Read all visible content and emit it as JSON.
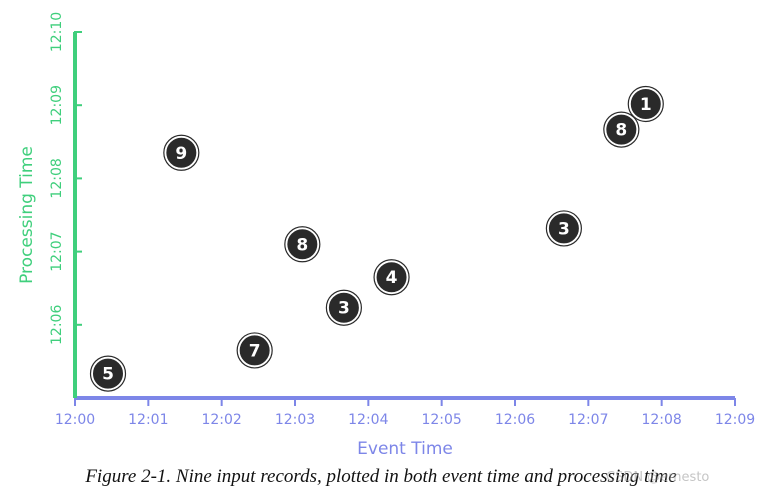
{
  "chart_data": {
    "type": "scatter",
    "xlabel": "Event Time",
    "ylabel": "Processing Time",
    "x_ticks": [
      "12:00",
      "12:01",
      "12:02",
      "12:03",
      "12:04",
      "12:05",
      "12:06",
      "12:07",
      "12:08",
      "12:09"
    ],
    "y_ticks": [
      "12:10",
      "12:09",
      "12:08",
      "12:07",
      "12:06"
    ],
    "x_range": [
      "12:00",
      "12:09"
    ],
    "y_range": [
      "12:05:00",
      "12:10:00"
    ],
    "grid": false,
    "points": [
      {
        "label": "5",
        "x": "12:00:27",
        "y": "12:05:20"
      },
      {
        "label": "9",
        "x": "12:01:27",
        "y": "12:08:21"
      },
      {
        "label": "7",
        "x": "12:02:27",
        "y": "12:05:39"
      },
      {
        "label": "8",
        "x": "12:03:06",
        "y": "12:07:06"
      },
      {
        "label": "3",
        "x": "12:03:40",
        "y": "12:06:14"
      },
      {
        "label": "4",
        "x": "12:04:19",
        "y": "12:06:39"
      },
      {
        "label": "3",
        "x": "12:06:40",
        "y": "12:07:19"
      },
      {
        "label": "8",
        "x": "12:07:27",
        "y": "12:08:40"
      },
      {
        "label": "1",
        "x": "12:07:47",
        "y": "12:09:01"
      }
    ]
  },
  "caption": "Figure 2-1. Nine input records, plotted in both event time and processing time",
  "watermark": "CSDN @ernesto",
  "colors": {
    "x_axis": "#7d86e8",
    "y_axis": "#3fcf7c",
    "marker_fill": "#2a2a2a",
    "marker_stroke": "#ffffff",
    "marker_text": "#ffffff"
  }
}
